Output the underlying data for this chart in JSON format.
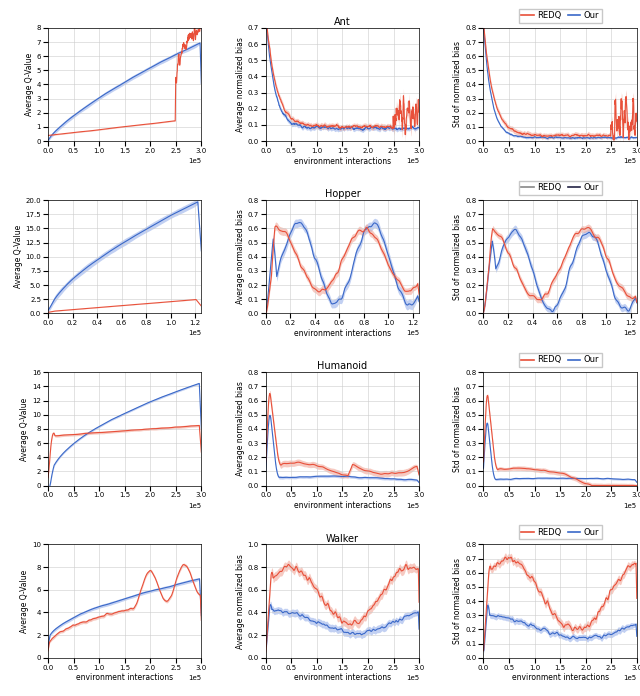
{
  "rows": [
    "Ant",
    "Hopper",
    "Humanoid",
    "Walker"
  ],
  "xlabel": "environment interactions",
  "red_color": "#e8503a",
  "blue_color": "#3a68c8",
  "red_fill": "#f0a090",
  "blue_fill": "#90aae8",
  "row0_xlim": 300000,
  "row1_xlim": 125000,
  "row2_xlim": 300000,
  "row3_xlim": 300000,
  "row0_q_ylim": [
    0,
    8
  ],
  "row0_b_ylim": [
    0.0,
    0.7
  ],
  "row0_s_ylim": [
    0.0,
    0.8
  ],
  "row1_q_ylim": [
    0,
    20
  ],
  "row1_b_ylim": [
    0.0,
    0.8
  ],
  "row1_s_ylim": [
    0.0,
    0.8
  ],
  "row2_q_ylim": [
    0,
    16
  ],
  "row2_b_ylim": [
    0.0,
    0.8
  ],
  "row2_s_ylim": [
    0.0,
    0.8
  ],
  "row3_q_ylim": [
    0,
    10
  ],
  "row3_b_ylim": [
    0.0,
    1.0
  ],
  "row3_s_ylim": [
    0.0,
    0.8
  ],
  "hopper_legend_colors": [
    "#888888",
    "#333388"
  ],
  "title_fontsize": 7,
  "label_fontsize": 5.5,
  "tick_fontsize": 5,
  "legend_fontsize": 6
}
